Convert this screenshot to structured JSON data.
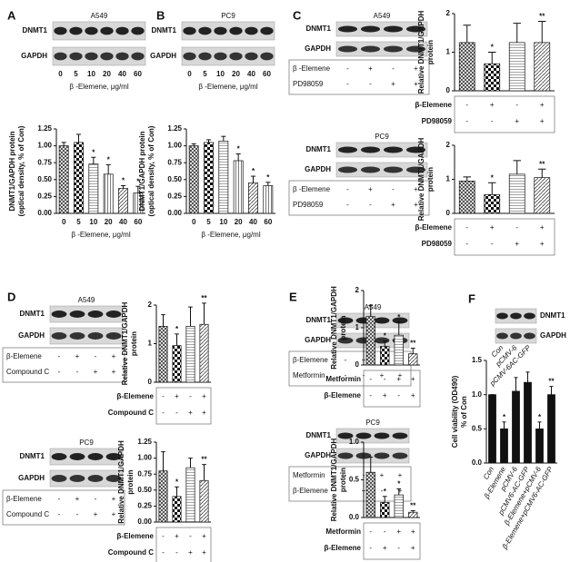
{
  "panel_labels": [
    "A",
    "B",
    "C",
    "D",
    "E",
    "F"
  ],
  "blots": [
    {
      "title": "A549",
      "rows": [
        "DNMT1",
        "GAPDH"
      ],
      "lanes": [
        "0",
        "5",
        "10",
        "20",
        "40",
        "60"
      ],
      "lane_label": "β -Elemene, μg/ml"
    },
    {
      "title": "PC9",
      "rows": [
        "DNMT1",
        "GAPDH"
      ],
      "lanes": [
        "0",
        "5",
        "10",
        "20",
        "40",
        "60"
      ],
      "lane_label": "β -Elemene, μg/ml"
    },
    {
      "title": "A549",
      "rows": [
        "DNMT1",
        "GAPDH"
      ],
      "conditions": [
        {
          "name": "β -Elemene",
          "signs": [
            "-",
            "+",
            "-",
            "+"
          ]
        },
        {
          "name": "PD98059",
          "signs": [
            "-",
            "-",
            "+",
            "+"
          ]
        }
      ]
    },
    {
      "title": "PC9",
      "rows": [
        "DNMT1",
        "GAPDH"
      ],
      "conditions": [
        {
          "name": "β -Elemene",
          "signs": [
            "-",
            "+",
            "-",
            "+"
          ]
        },
        {
          "name": "PD98059",
          "signs": [
            "-",
            "-",
            "+",
            "+"
          ]
        }
      ]
    },
    {
      "title": "A549",
      "rows": [
        "DNMT1",
        "GAPDH"
      ],
      "conditions": [
        {
          "name": "β-Elemene",
          "signs": [
            "-",
            "+",
            "-",
            "+"
          ]
        },
        {
          "name": "Compound C",
          "signs": [
            "-",
            "-",
            "+",
            "+"
          ]
        }
      ]
    },
    {
      "title": "PC9",
      "rows": [
        "DNMT1",
        "GAPDH"
      ],
      "conditions": [
        {
          "name": "β-Elemene",
          "signs": [
            "-",
            "+",
            "-",
            "+"
          ]
        },
        {
          "name": "Compound C",
          "signs": [
            "-",
            "-",
            "+",
            "+"
          ]
        }
      ]
    },
    {
      "title": "A549",
      "rows": [
        "DNMT1",
        "GAPDH"
      ],
      "conditions": [
        {
          "name": "β-Elemene",
          "signs": [
            "-",
            "+",
            "-",
            "+"
          ]
        },
        {
          "name": "Metformin",
          "signs": [
            "-",
            "-",
            "+",
            "+"
          ]
        }
      ]
    },
    {
      "title": "PC9",
      "rows": [
        "DNMT1",
        "GAPDH"
      ],
      "conditions": [
        {
          "name": "Metformin",
          "signs": [
            "-",
            "-",
            "+",
            "+"
          ]
        },
        {
          "name": "β-Elemene",
          "signs": [
            "-",
            "+",
            "-",
            "+"
          ]
        }
      ]
    },
    {
      "rows": [
        "DNMT1",
        "GAPDH"
      ],
      "lanes": [
        "Con",
        "pCMV-6",
        "pCMV-6AC-GFP"
      ]
    }
  ],
  "chart_data": [
    {
      "type": "bar",
      "ylabel": [
        "DNMT1/GAPDH protein",
        "(optical density, % of Con)"
      ],
      "categories": [
        "0",
        "5",
        "10",
        "20",
        "40",
        "60"
      ],
      "xlabel": "β -Elemene, μg/ml",
      "values": [
        1.0,
        1.05,
        0.73,
        0.58,
        0.37,
        0.3
      ],
      "errors": [
        0.05,
        0.12,
        0.1,
        0.14,
        0.04,
        0.1
      ],
      "annotations": [
        null,
        null,
        "*",
        "*",
        "*",
        "*"
      ],
      "patterns": [
        "grid",
        "check",
        "hlines",
        "vlines",
        "diag",
        "vlines"
      ],
      "ylim": [
        0,
        1.25
      ],
      "yticks": [
        {
          "value": 0,
          "label": "0.00"
        },
        0.25,
        {
          "value": 0.5,
          "label": "0.50"
        },
        0.75,
        {
          "value": 1,
          "label": "1.00"
        },
        1.25
      ]
    },
    {
      "type": "bar",
      "ylabel": [
        "DNMT1/GAPDH protein",
        "(optical density, % of Con)"
      ],
      "categories": [
        "0",
        "5",
        "10",
        "20",
        "40",
        "60"
      ],
      "xlabel": "β -Elemene, μg/ml",
      "values": [
        1.0,
        1.05,
        1.07,
        0.78,
        0.45,
        0.41
      ],
      "errors": [
        0.03,
        0.04,
        0.07,
        0.1,
        0.1,
        0.05
      ],
      "annotations": [
        null,
        null,
        null,
        "*",
        "*",
        "*"
      ],
      "patterns": [
        "grid",
        "check",
        "hlines",
        "vlines",
        "diag",
        "vlines"
      ],
      "ylim": [
        0,
        1.25
      ],
      "yticks": [
        {
          "value": 0,
          "label": "0.00"
        },
        0.25,
        {
          "value": 0.5,
          "label": "0.50"
        },
        0.75,
        {
          "value": 1,
          "label": "1.00"
        },
        1.25
      ]
    },
    {
      "type": "bar",
      "ylabel": [
        "Relative DNMT1/GAPDH",
        "protein"
      ],
      "values": [
        1.25,
        0.7,
        1.25,
        1.25
      ],
      "errors": [
        0.45,
        0.3,
        0.5,
        0.55
      ],
      "annotations": [
        null,
        "*",
        null,
        "**"
      ],
      "patterns": [
        "grid",
        "check",
        "hlines",
        "diag"
      ],
      "ylim": [
        0,
        2
      ],
      "yticks": [
        0,
        1,
        2
      ],
      "conditions": [
        {
          "name": "β-Elemene",
          "signs": [
            "-",
            "+",
            "-",
            "+"
          ]
        },
        {
          "name": "PD98059",
          "signs": [
            "-",
            "-",
            "+",
            "+"
          ]
        }
      ]
    },
    {
      "type": "bar",
      "ylabel": [
        "Relative DNMT1/GAPDH",
        "protein"
      ],
      "values": [
        0.95,
        0.55,
        1.15,
        1.05
      ],
      "errors": [
        0.12,
        0.35,
        0.4,
        0.25
      ],
      "annotations": [
        null,
        "*",
        null,
        "**"
      ],
      "patterns": [
        "grid",
        "check",
        "hlines",
        "diag"
      ],
      "ylim": [
        0,
        2
      ],
      "yticks": [
        0,
        1,
        2
      ],
      "conditions": [
        {
          "name": "β-Elemene",
          "signs": [
            "-",
            "+",
            "-",
            "+"
          ]
        },
        {
          "name": "PD98059",
          "signs": [
            "-",
            "-",
            "+",
            "+"
          ]
        }
      ]
    },
    {
      "type": "bar",
      "ylabel": [
        "Relative DNMT1/GAPDH",
        "protein"
      ],
      "values": [
        1.45,
        0.95,
        1.45,
        1.5
      ],
      "errors": [
        0.3,
        0.3,
        0.5,
        0.55
      ],
      "annotations": [
        null,
        "*",
        null,
        "**"
      ],
      "patterns": [
        "grid",
        "check",
        "hlines",
        "diag"
      ],
      "ylim": [
        0,
        2
      ],
      "yticks": [
        0,
        1,
        2
      ],
      "conditions": [
        {
          "name": "β-Elemene",
          "signs": [
            "-",
            "+",
            "-",
            "+"
          ]
        },
        {
          "name": "Compound C",
          "signs": [
            "-",
            "-",
            "+",
            "+"
          ]
        }
      ]
    },
    {
      "type": "bar",
      "ylabel": [
        "Relative DNMT1/GAPDH",
        "protein"
      ],
      "values": [
        0.8,
        0.4,
        0.85,
        0.65
      ],
      "errors": [
        0.3,
        0.15,
        0.15,
        0.25
      ],
      "annotations": [
        null,
        "*",
        null,
        "**"
      ],
      "patterns": [
        "grid",
        "check",
        "hlines",
        "diag"
      ],
      "ylim": [
        0,
        1.25
      ],
      "yticks": [
        {
          "value": 0,
          "label": "0.00"
        },
        0.25,
        {
          "value": 0.5,
          "label": "0.50"
        },
        0.75,
        {
          "value": 1,
          "label": "1.00"
        },
        1.25
      ],
      "conditions": [
        {
          "name": "β-Elemene",
          "signs": [
            "-",
            "+",
            "-",
            "+"
          ]
        },
        {
          "name": "Compound C",
          "signs": [
            "-",
            "-",
            "+",
            "+"
          ]
        }
      ]
    },
    {
      "type": "bar",
      "ylabel": [
        "Relative DNMT1/GAPDH",
        "protein"
      ],
      "values": [
        1.3,
        0.5,
        0.8,
        0.3
      ],
      "errors": [
        0.3,
        0.15,
        0.35,
        0.15
      ],
      "annotations": [
        null,
        "*",
        "*",
        "**"
      ],
      "patterns": [
        "grid",
        "check",
        "hlines",
        "diag"
      ],
      "ylim": [
        0,
        2
      ],
      "yticks": [
        0,
        1,
        2
      ],
      "conditions": [
        {
          "name": "Metformin",
          "signs": [
            "-",
            "-",
            "+",
            "+"
          ]
        },
        {
          "name": "β-Elemene",
          "signs": [
            "-",
            "+",
            "-",
            "+"
          ]
        }
      ]
    },
    {
      "type": "bar",
      "ylabel": [
        "Relative DNMT1/GAPDH",
        "protein"
      ],
      "values": [
        0.6,
        0.2,
        0.3,
        0.07
      ],
      "errors": [
        0.2,
        0.08,
        0.08,
        0.02
      ],
      "annotations": [
        null,
        "*",
        "*",
        "**"
      ],
      "patterns": [
        "grid",
        "check",
        "hlines",
        "diag"
      ],
      "ylim": [
        0,
        1
      ],
      "yticks": [
        {
          "value": 0,
          "label": "0.0"
        },
        0.5,
        {
          "value": 1,
          "label": "1.0"
        }
      ],
      "conditions": [
        {
          "name": "Metformin",
          "signs": [
            "-",
            "-",
            "+",
            "+"
          ]
        },
        {
          "name": "β-Elemene",
          "signs": [
            "-",
            "+",
            "-",
            "+"
          ]
        }
      ]
    },
    {
      "type": "bar",
      "ylabel": [
        "Cell viability (OD490)",
        "% of Con"
      ],
      "categories": [
        "Con",
        "β-Elemene",
        "pCMV-6",
        "pCMV6-AC-GFP",
        "β-Elemene+pCMV-6",
        "β-Elemene+pCMV6-AC-GFP"
      ],
      "values": [
        1.0,
        0.5,
        1.05,
        1.18,
        0.5,
        1.0
      ],
      "errors": [
        0,
        0.1,
        0.2,
        0.15,
        0.1,
        0.12
      ],
      "annotations": [
        null,
        "*",
        null,
        null,
        "*",
        "**"
      ],
      "patterns": [
        "black",
        "black",
        "black",
        "black",
        "black",
        "black"
      ],
      "ylim": [
        0,
        1.5
      ],
      "yticks": [
        {
          "value": 0,
          "label": "0.0"
        },
        0.5,
        {
          "value": 1,
          "label": "1.0"
        },
        1.5
      ]
    }
  ]
}
